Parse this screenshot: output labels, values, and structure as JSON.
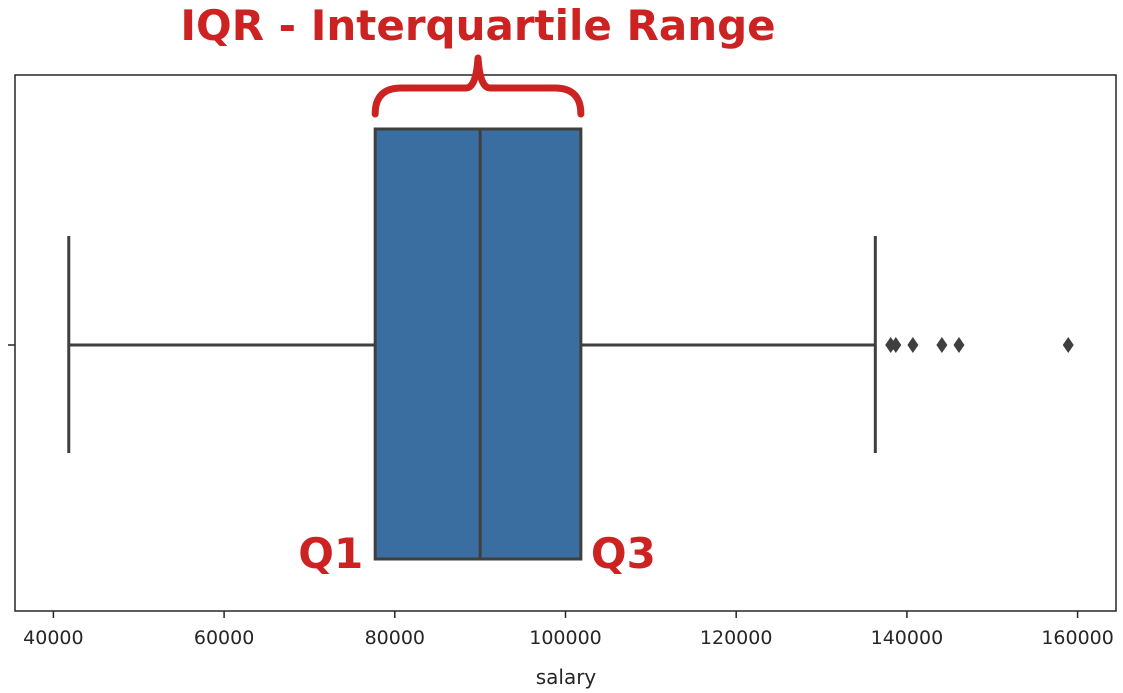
{
  "chart_data": {
    "type": "boxplot",
    "orientation": "horizontal",
    "xlabel": "salary",
    "xlim": [
      35500,
      164500
    ],
    "xticks": [
      40000,
      60000,
      80000,
      100000,
      120000,
      140000,
      160000
    ],
    "xtick_labels": [
      "40000",
      "60000",
      "80000",
      "100000",
      "120000",
      "140000",
      "160000"
    ],
    "box": {
      "whisker_low": 41800,
      "q1": 77700,
      "median": 90000,
      "q3": 101800,
      "whisker_high": 136300,
      "outliers": [
        138100,
        138700,
        140700,
        144100,
        146100,
        158900
      ]
    },
    "grid": false,
    "colors": {
      "box_fill": "#3a6da0",
      "line": "#3f3f3f",
      "annotation": "#cc2222"
    }
  },
  "annotations": {
    "title": "IQR - Interquartile Range",
    "q1": "Q1",
    "q3": "Q3"
  }
}
